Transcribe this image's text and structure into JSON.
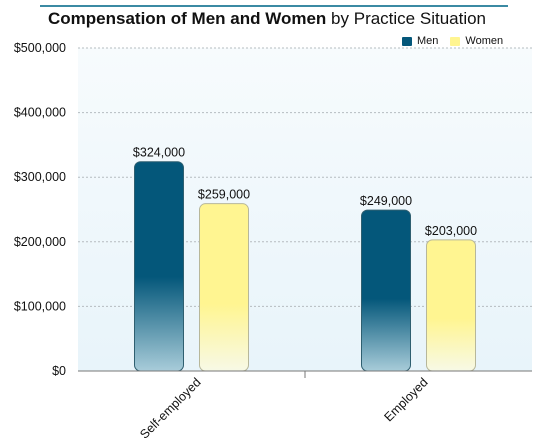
{
  "title_bold": "Compensation of Men and Women",
  "title_rest": "by Practice Situation",
  "colors": {
    "men": "#04577a",
    "women": "#fff591",
    "plot_bg": "#eef7fb",
    "title_rule": "#3b8aa3"
  },
  "chart_data": {
    "type": "bar",
    "title": "Compensation of Men and Women by Practice Situation",
    "categories": [
      "Self-employed",
      "Employed"
    ],
    "series": [
      {
        "name": "Men",
        "values": [
          324000,
          249000
        ],
        "labels": [
          "$324,000",
          "$249,000"
        ]
      },
      {
        "name": "Women",
        "values": [
          259000,
          203000
        ],
        "labels": [
          "$259,000",
          "$203,000"
        ]
      }
    ],
    "ylim": [
      0,
      500000
    ],
    "yticks": [
      0,
      100000,
      200000,
      300000,
      400000,
      500000
    ],
    "ytick_labels": [
      "$0",
      "$100,000",
      "$200,000",
      "$300,000",
      "$400,000",
      "$500,000"
    ],
    "xlabel": "",
    "ylabel": "",
    "legend": "top-right",
    "grid": true
  }
}
